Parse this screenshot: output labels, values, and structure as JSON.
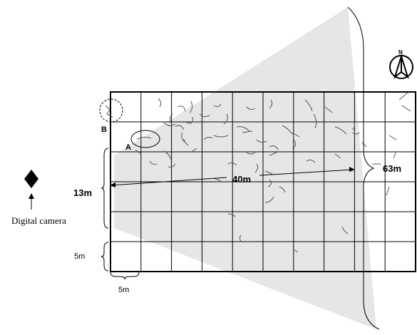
{
  "diagram": {
    "labels": {
      "point_a": "A",
      "point_b": "B",
      "width": "40m",
      "depth_grid": "13m",
      "range": "63m",
      "cell_height": "5m",
      "cell_width": "5m",
      "camera": "Digital camera",
      "north": "N"
    },
    "grid": {
      "columns": 10,
      "rows": 6
    },
    "colors": {
      "field_of_view": "#e6e6e6",
      "lines": "#000000",
      "cracks": "#555555"
    },
    "icons": {
      "camera": "diamond-camera-icon",
      "north": "north-arrow-icon"
    }
  }
}
